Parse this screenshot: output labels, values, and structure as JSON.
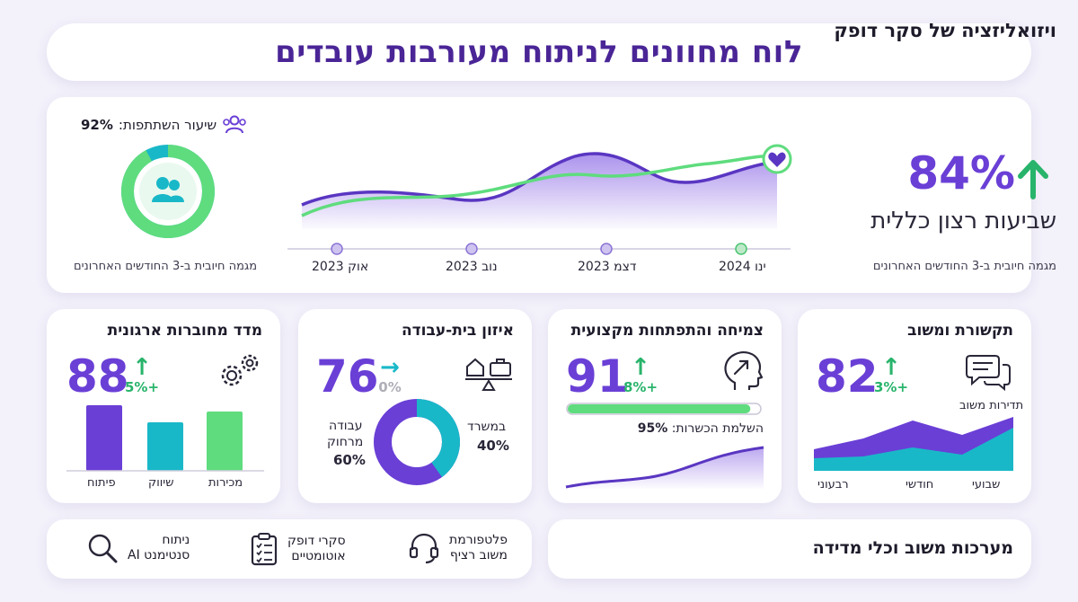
{
  "title": "לוח מחוונים לניתוח מעורבות עובדים",
  "hero": {
    "heading": "ויזואליזציה של סקר דופק",
    "big_value": "84%",
    "caption": "שביעות רצון כללית",
    "trend_right": "מגמה חיובית ב-3 החודשים האחרונים",
    "trend_left": "מגמה חיובית ב-3 החודשים האחרונים",
    "participation_label": "שיעור השתתפות:",
    "participation_value": "92%",
    "participation_fraction": 0.92,
    "months": [
      "ינו 2024",
      "דצמ 2023",
      "נוב 2023",
      "אוק 2023"
    ],
    "heart_icon": "heart-icon",
    "people_icon": "users-icon"
  },
  "cards": {
    "communication": {
      "title": "תקשורת ומשוב",
      "value": "82",
      "delta": "+3%",
      "subtitle": "תדירות משוב",
      "axis": [
        "שבועי",
        "חודשי",
        "רבעוני"
      ],
      "icon": "chat-bubbles-icon"
    },
    "growth": {
      "title": "צמיחה והתפתחות מקצועית",
      "value": "91",
      "delta": "+8%",
      "progress_label": "השלמת הכשרות:",
      "progress_value": "95%",
      "progress_fraction": 0.95,
      "icon": "head-arrow-icon"
    },
    "balance": {
      "title": "איזון בית-עבודה",
      "value": "76",
      "delta": "0%",
      "office_label": "במשרד",
      "office_value": "40%",
      "remote_label_1": "עבודה",
      "remote_label_2": "מרחוק",
      "remote_value": "60%",
      "office_fraction": 0.4,
      "icon": "home-office-balance-icon"
    },
    "connectedness": {
      "title": "מדד מחוברות ארגונית",
      "value": "88",
      "delta": "+5%",
      "bars": [
        "מכירות",
        "שיווק",
        "פיתוח"
      ],
      "icon": "gears-icon"
    }
  },
  "tools": {
    "title": "מערכות משוב וכלי מדידה",
    "items": [
      {
        "line1": "פלטפורמת",
        "line2": "משוב רציף",
        "icon": "headset-icon"
      },
      {
        "line1": "סקרי דופק",
        "line2": "אוטומטיים",
        "icon": "clipboard-checklist-icon"
      },
      {
        "line1": "ניתוח",
        "line2": "סנטימנט AI",
        "icon": "magnifier-icon"
      }
    ]
  },
  "colors": {
    "purple": "#6a3fd6",
    "deep_purple": "#4a2596",
    "green": "#5fdc7e",
    "teal": "#19b8c8",
    "arrow_green": "#28b46b"
  }
}
